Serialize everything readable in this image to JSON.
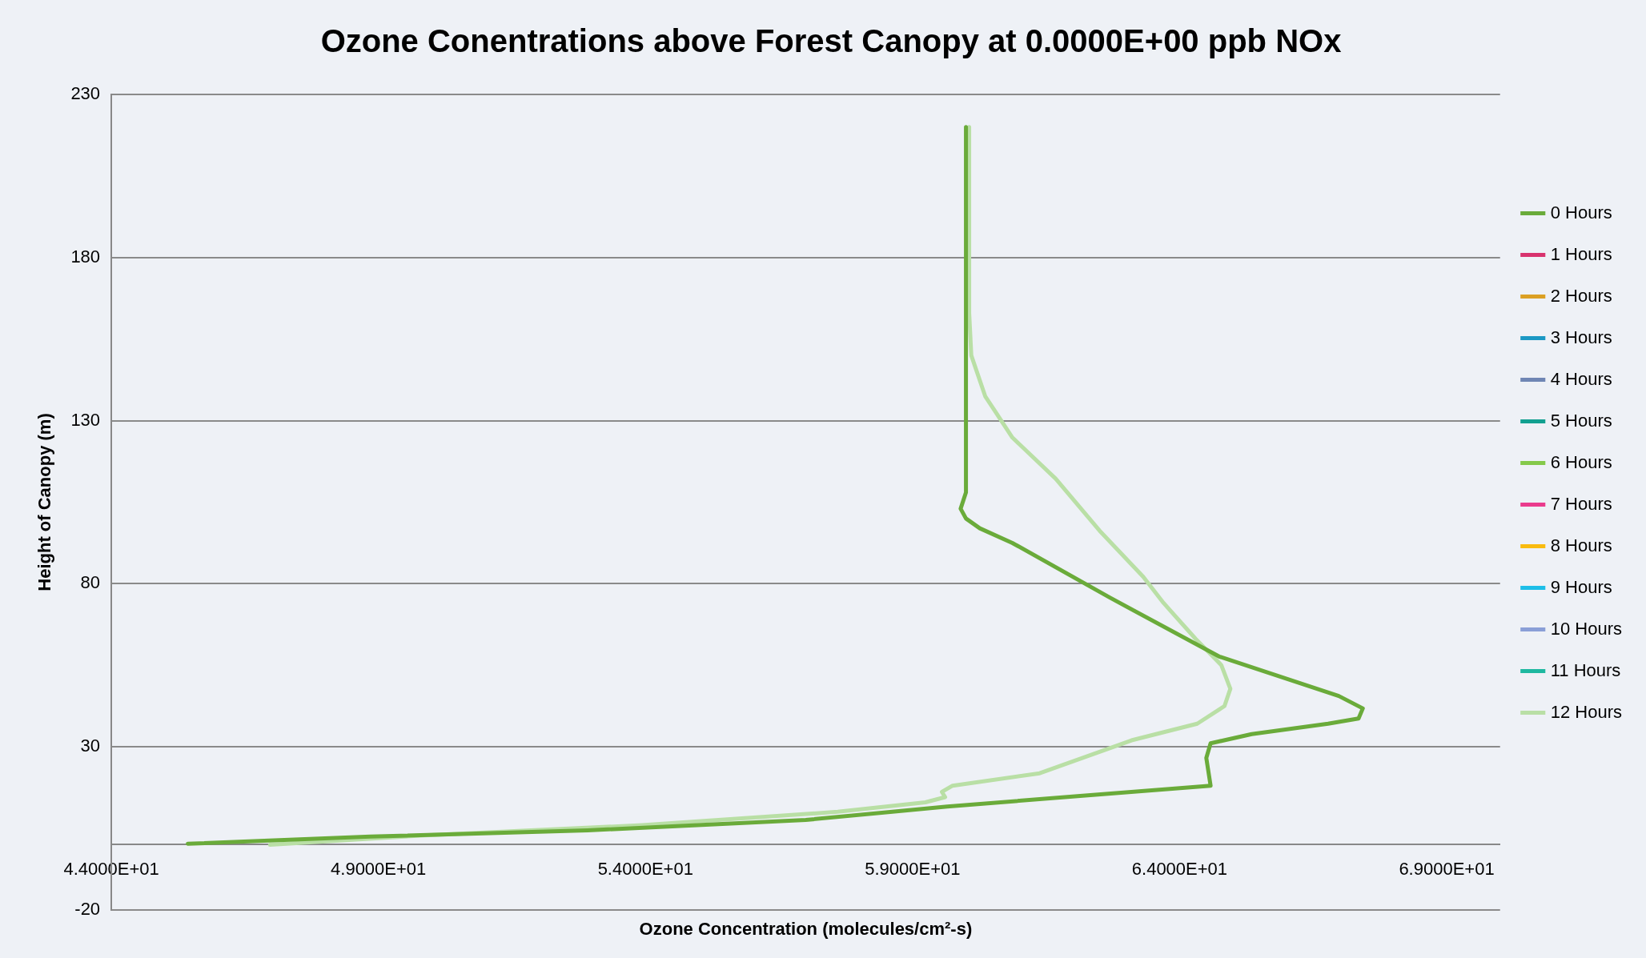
{
  "chart_data": {
    "type": "line",
    "title": "Ozone Conentrations above Forest Canopy at 0.0000E+00 ppb NOx",
    "xlabel": "Ozone Concentration (molecules/cm²-s)",
    "ylabel": "Height of Canopy (m)",
    "xlim": [
      44,
      70
    ],
    "xticks": [
      {
        "value": 44,
        "label": "4.4000E+01"
      },
      {
        "value": 49,
        "label": "4.9000E+01"
      },
      {
        "value": 54,
        "label": "5.4000E+01"
      },
      {
        "value": 59,
        "label": "5.9000E+01"
      },
      {
        "value": 64,
        "label": "6.4000E+01"
      },
      {
        "value": 69,
        "label": "6.9000E+01"
      }
    ],
    "ylim": [
      -20,
      230
    ],
    "yticks": [
      -20,
      30,
      80,
      130,
      180,
      230
    ],
    "grid": "y",
    "legend": "right",
    "marker": "none",
    "line_style": "solid",
    "series": [
      {
        "name": "0 Hours",
        "color": "#6aab3a",
        "x": [
          60.0,
          60.0,
          59.9,
          60.0,
          60.26,
          60.87,
          62.7,
          64.74,
          66.98,
          67.43,
          67.35,
          66.78,
          65.35,
          64.58,
          64.5,
          64.58,
          62.09,
          59.65,
          57.0,
          52.92,
          48.85,
          45.43
        ],
        "values": [
          220,
          108,
          103,
          100,
          97,
          92.5,
          75.7,
          57.7,
          45.6,
          41.8,
          38.7,
          37.1,
          33.9,
          31.1,
          26.6,
          18.1,
          14.9,
          11.7,
          7.6,
          4.4,
          2.5,
          0.3
        ]
      },
      {
        "name": "1 Hours",
        "color": "#d8326e",
        "x": [
          null
        ],
        "values": [
          null
        ]
      },
      {
        "name": "2 Hours",
        "color": "#dba023",
        "x": [
          null
        ],
        "values": [
          null
        ]
      },
      {
        "name": "3 Hours",
        "color": "#1b98c4",
        "x": [
          null
        ],
        "values": [
          null
        ]
      },
      {
        "name": "4 Hours",
        "color": "#6f86b4",
        "x": [
          null
        ],
        "values": [
          null
        ]
      },
      {
        "name": "5 Hours",
        "color": "#12a090",
        "x": [
          null
        ],
        "values": [
          null
        ]
      },
      {
        "name": "6 Hours",
        "color": "#84c94a",
        "x": [
          null
        ],
        "values": [
          null
        ]
      },
      {
        "name": "7 Hours",
        "color": "#ea3b8d",
        "x": [
          null
        ],
        "values": [
          null
        ]
      },
      {
        "name": "8 Hours",
        "color": "#f9bb0f",
        "x": [
          null
        ],
        "values": [
          null
        ]
      },
      {
        "name": "9 Hours",
        "color": "#1dbee8",
        "x": [
          null
        ],
        "values": [
          null
        ]
      },
      {
        "name": "10 Hours",
        "color": "#8a9fd7",
        "x": [
          null
        ],
        "values": [
          null
        ]
      },
      {
        "name": "11 Hours",
        "color": "#1eb8a0",
        "x": [
          null
        ],
        "values": [
          null
        ]
      },
      {
        "name": "12 Hours",
        "color": "#b9dfa5",
        "x": [
          60.06,
          60.06,
          60.1,
          60.36,
          60.87,
          61.68,
          62.5,
          63.32,
          63.7,
          64.3,
          64.78,
          64.95,
          64.84,
          64.33,
          63.1,
          61.38,
          59.75,
          59.55,
          59.61,
          59.24,
          57.6,
          53.94,
          49.87,
          46.97
        ],
        "values": [
          220,
          163,
          150,
          137.5,
          124.8,
          112.2,
          96.3,
          82.1,
          74.1,
          63.1,
          55.1,
          47.8,
          42.5,
          37.1,
          32,
          21.9,
          18.1,
          16.2,
          14.6,
          13,
          10.1,
          6.0,
          2.9,
          0
        ]
      }
    ]
  }
}
